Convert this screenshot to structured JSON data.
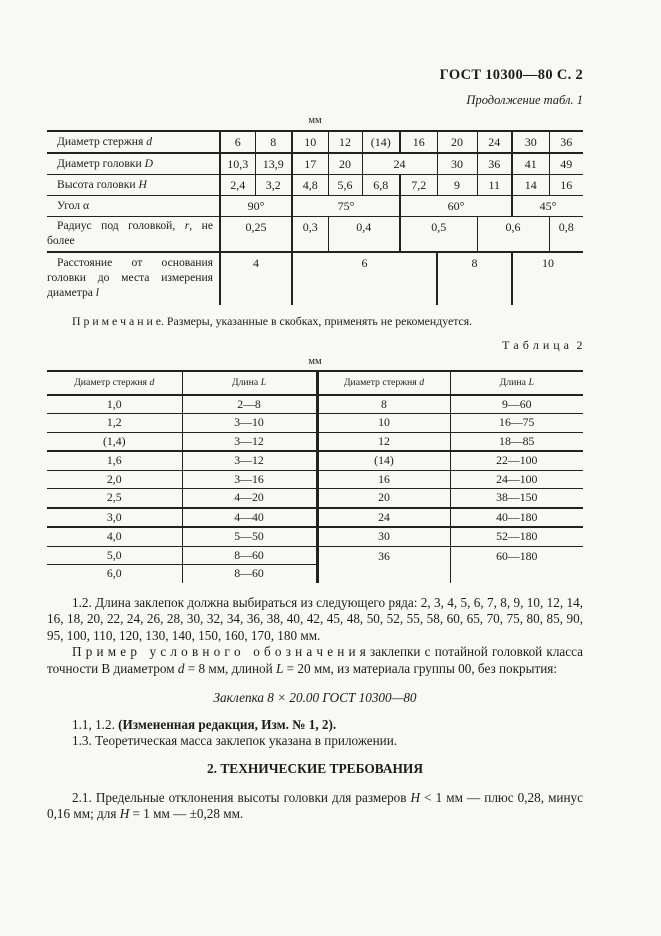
{
  "page": {
    "doc_header": "ГОСТ 10300—80 С. 2",
    "continuation_note": "Продолжение табл. 1",
    "units_label_1": "мм",
    "units_label_2": "мм",
    "table2_label": "Т а б л и ц а  2"
  },
  "table1": {
    "rows": [
      {
        "cls": "hb2",
        "label": {
          "pre": "Диаметр стержня ",
          "var": "d",
          "post": ""
        },
        "cells": [
          {
            "t": "6",
            "span": 1,
            "bl": 2
          },
          {
            "t": "8",
            "span": 1,
            "bl": 1
          },
          {
            "t": "10",
            "span": 1,
            "bl": 2
          },
          {
            "t": "12",
            "span": 1,
            "bl": 1
          },
          {
            "t": "(14)",
            "span": 1,
            "bl": 1
          },
          {
            "t": "16",
            "span": 1,
            "bl": 2
          },
          {
            "t": "20",
            "span": 1,
            "bl": 1
          },
          {
            "t": "24",
            "span": 1,
            "bl": 1
          },
          {
            "t": "30",
            "span": 1,
            "bl": 2
          },
          {
            "t": "36",
            "span": 1,
            "bl": 1
          }
        ]
      },
      {
        "cls": "hb1",
        "label": {
          "pre": "Диаметр головки ",
          "var": "D",
          "post": ""
        },
        "cells": [
          {
            "t": "10,3",
            "span": 1,
            "bl": 2
          },
          {
            "t": "13,9",
            "span": 1,
            "bl": 1
          },
          {
            "t": "17",
            "span": 1,
            "bl": 2
          },
          {
            "t": "20",
            "span": 1,
            "bl": 1
          },
          {
            "t": "24",
            "span": 2,
            "bl": 1
          },
          {
            "t": "30",
            "span": 1,
            "bl": 1
          },
          {
            "t": "36",
            "span": 1,
            "bl": 1
          },
          {
            "t": "41",
            "span": 1,
            "bl": 2
          },
          {
            "t": "49",
            "span": 1,
            "bl": 1
          }
        ]
      },
      {
        "cls": "hb1",
        "label": {
          "pre": "Высота головки ",
          "var": "H",
          "post": ""
        },
        "cells": [
          {
            "t": "2,4",
            "span": 1,
            "bl": 2
          },
          {
            "t": "3,2",
            "span": 1,
            "bl": 1
          },
          {
            "t": "4,8",
            "span": 1,
            "bl": 2
          },
          {
            "t": "5,6",
            "span": 1,
            "bl": 1
          },
          {
            "t": "6,8",
            "span": 1,
            "bl": 1
          },
          {
            "t": "7,2",
            "span": 1,
            "bl": 2
          },
          {
            "t": "9",
            "span": 1,
            "bl": 1
          },
          {
            "t": "11",
            "span": 1,
            "bl": 1
          },
          {
            "t": "14",
            "span": 1,
            "bl": 2
          },
          {
            "t": "16",
            "span": 1,
            "bl": 1
          }
        ]
      },
      {
        "cls": "hb1",
        "label": {
          "pre": "Угол α",
          "var": "",
          "post": ""
        },
        "cells": [
          {
            "t": "90°",
            "span": 2,
            "bl": 2
          },
          {
            "t": "75°",
            "span": 3,
            "bl": 2
          },
          {
            "t": "60°",
            "span": 3,
            "bl": 2
          },
          {
            "t": "45°",
            "span": 2,
            "bl": 2
          }
        ]
      },
      {
        "cls": "hb2 vtop",
        "label": {
          "pre": "Радиус под головкой, ",
          "var": "r",
          "post": ", не более"
        },
        "cells": [
          {
            "t": "0,25",
            "span": 2,
            "bl": 2
          },
          {
            "t": "0,3",
            "span": 1,
            "bl": 2
          },
          {
            "t": "0,4",
            "span": 2,
            "bl": 1
          },
          {
            "t": "0,5",
            "span": 2,
            "bl": 2
          },
          {
            "t": "0,6",
            "span": 2,
            "bl": 1
          },
          {
            "t": "0,8",
            "span": 1,
            "bl": 1
          }
        ]
      },
      {
        "cls": "hb0 vtop lrow",
        "label": {
          "pre": "Расстояние от основания головки до места измерения диаметра ",
          "var": "l",
          "post": ""
        },
        "cells": [
          {
            "t": "4",
            "span": 2,
            "bl": 2
          },
          {
            "t": "6",
            "span": 4,
            "bl": 2
          },
          {
            "t": "8",
            "span": 2,
            "bl": 2
          },
          {
            "t": "10",
            "span": 2,
            "bl": 2
          }
        ]
      }
    ]
  },
  "table2": {
    "headers": [
      {
        "pre": "Диаметр стержня ",
        "var": "d"
      },
      {
        "pre": "Длина ",
        "var": "L"
      },
      {
        "pre": "Диаметр стержня ",
        "var": "d"
      },
      {
        "pre": "Длина ",
        "var": "L"
      }
    ],
    "row_classes": [
      "hb1",
      "hb1",
      "hb2",
      "hb1",
      "hb1",
      "hb2",
      "hb2",
      "hb1",
      "hb1",
      "hb0"
    ],
    "rows": [
      [
        "1,0",
        "2—8",
        "8",
        "9—60"
      ],
      [
        "1,2",
        "3—10",
        "10",
        "16—75"
      ],
      [
        "(1,4)",
        "3—12",
        "12",
        "18—85"
      ],
      [
        "1,6",
        "3—12",
        "(14)",
        "22—100"
      ],
      [
        "2,0",
        "3—16",
        "16",
        "24—100"
      ],
      [
        "2,5",
        "4—20",
        "20",
        "38—150"
      ],
      [
        "3,0",
        "4—40",
        "24",
        "40—180"
      ],
      [
        "4,0",
        "5—50",
        "30",
        "52—180"
      ],
      [
        "5,0",
        "8—60",
        "36",
        "60—180"
      ],
      [
        "6,0",
        "8—60",
        "",
        ""
      ]
    ]
  },
  "paragraphs": {
    "note": [
      {
        "t": "П р и м е ч а н и е. Размеры, указанные в скобках, применять не рекомендуется.",
        "s": "normal"
      }
    ],
    "p12": [
      {
        "t": "1.2. Длина заклепок должна выбираться из следующего ряда: 2, 3, 4, 5, 6, 7, 8, 9, 10, 12, 14, 16, 18, 20, 22, 24, 26, 28, 30, 32, 34, 36, 38, 40, 42, 45, 48, 50, 52, 55, 58, 60, 65, 70, 75, 80, 85, 90, 95, 100, 110, 120, 130, 140, 150, 160, 170, 180 мм.",
        "s": "normal"
      }
    ],
    "primer": [
      {
        "t": "П р и м е р   у с л о в н о г о   о б о з н а ч е н и я заклепки с потайной головкой класса точности В диаметром ",
        "s": "normal"
      },
      {
        "t": "d",
        "s": "italic"
      },
      {
        "t": " = 8 мм, длиной ",
        "s": "normal"
      },
      {
        "t": "L",
        "s": "italic"
      },
      {
        "t": " = 20 мм, из материала группы 00, без покрытия:",
        "s": "normal"
      }
    ],
    "designation": [
      {
        "t": "Заклепка 8 × 20.00 ГОСТ 10300—80",
        "s": "italic"
      }
    ],
    "p11": [
      {
        "t": "1.1, 1.2. ",
        "s": "normal"
      },
      {
        "t": "(Измененная редакция, Изм. № 1, 2).",
        "s": "bold"
      }
    ],
    "p13": [
      {
        "t": "1.3. Теоретическая масса заклепок указана в приложении.",
        "s": "normal"
      }
    ],
    "heading2": "2. ТЕХНИЧЕСКИЕ ТРЕБОВАНИЯ",
    "p21": [
      {
        "t": "2.1. Предельные отклонения высоты головки для размеров ",
        "s": "normal"
      },
      {
        "t": "H",
        "s": "italic"
      },
      {
        "t": " < 1 мм — плюс 0,28, минус 0,16 мм; для ",
        "s": "normal"
      },
      {
        "t": "H",
        "s": "italic"
      },
      {
        "t": " = 1 мм — ±0,28 мм.",
        "s": "normal"
      }
    ]
  }
}
